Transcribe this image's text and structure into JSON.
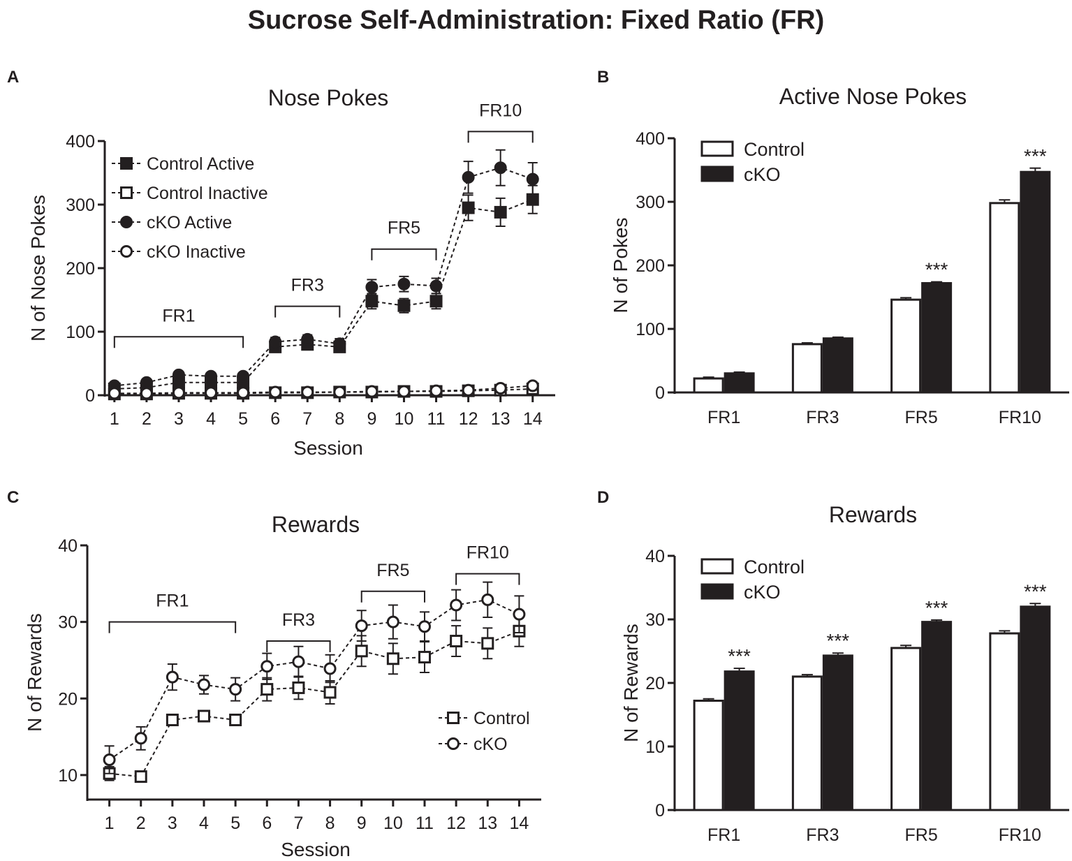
{
  "figure": {
    "title": "Sucrose Self-Administration: Fixed Ratio (FR)"
  },
  "chart_data": [
    {
      "panel": "A",
      "type": "line",
      "title": "Nose Pokes",
      "xlabel": "Session",
      "ylabel": "N of Nose Pokes",
      "x": [
        1,
        2,
        3,
        4,
        5,
        6,
        7,
        8,
        9,
        10,
        11,
        12,
        13,
        14
      ],
      "xlim": [
        0.7,
        14.7
      ],
      "ylim": [
        0,
        400
      ],
      "yticks": [
        0,
        100,
        200,
        300,
        400
      ],
      "legend_position": "top-left",
      "series": [
        {
          "name": "Control Active",
          "marker": "square",
          "fill": "filled",
          "values": [
            10,
            12,
            20,
            20,
            20,
            76,
            80,
            76,
            148,
            141,
            148,
            295,
            288,
            308
          ],
          "errors": [
            3,
            3,
            4,
            4,
            4,
            7,
            7,
            7,
            12,
            11,
            12,
            20,
            22,
            22
          ]
        },
        {
          "name": "Control Inactive",
          "marker": "square",
          "fill": "open",
          "values": [
            2,
            2,
            3,
            3,
            3,
            4,
            4,
            5,
            5,
            6,
            6,
            7,
            8,
            10
          ],
          "errors": [
            1,
            1,
            1,
            1,
            1,
            1,
            1,
            1,
            1,
            1,
            1,
            2,
            2,
            2
          ]
        },
        {
          "name": "cKO Active",
          "marker": "circle",
          "fill": "filled",
          "values": [
            15,
            20,
            32,
            30,
            30,
            84,
            88,
            81,
            170,
            175,
            172,
            343,
            358,
            340
          ],
          "errors": [
            3,
            4,
            5,
            5,
            5,
            7,
            7,
            8,
            12,
            12,
            12,
            25,
            28,
            26
          ]
        },
        {
          "name": "cKO Inactive",
          "marker": "circle",
          "fill": "open",
          "values": [
            3,
            3,
            4,
            4,
            4,
            5,
            5,
            5,
            6,
            6,
            7,
            8,
            11,
            15
          ],
          "errors": [
            1,
            1,
            1,
            1,
            1,
            1,
            1,
            1,
            1,
            1,
            1,
            2,
            2,
            2
          ]
        }
      ],
      "brackets": [
        {
          "label": "FR1",
          "from": 1,
          "to": 5,
          "level": 92
        },
        {
          "label": "FR3",
          "from": 6,
          "to": 8,
          "level": 140
        },
        {
          "label": "FR5",
          "from": 9,
          "to": 11,
          "level": 230
        },
        {
          "label": "FR10",
          "from": 12,
          "to": 14,
          "level": 415
        }
      ]
    },
    {
      "panel": "B",
      "type": "bar",
      "title": "Active Nose Pokes",
      "xlabel": "",
      "ylabel": "N of Pokes",
      "categories": [
        "FR1",
        "FR3",
        "FR5",
        "FR10"
      ],
      "ylim": [
        0,
        400
      ],
      "yticks": [
        0,
        100,
        200,
        300,
        400
      ],
      "legend_position": "top-left",
      "series": [
        {
          "name": "Control",
          "fill": "open",
          "values": [
            22,
            76,
            146,
            298
          ],
          "errors": [
            2,
            2,
            3,
            5
          ]
        },
        {
          "name": "cKO",
          "fill": "filled",
          "values": [
            30,
            85,
            172,
            347
          ],
          "errors": [
            2,
            2,
            2,
            6
          ]
        }
      ],
      "annotations": [
        {
          "category": "FR5",
          "series": "cKO",
          "text": "***"
        },
        {
          "category": "FR10",
          "series": "cKO",
          "text": "***"
        }
      ]
    },
    {
      "panel": "C",
      "type": "line",
      "title": "Rewards",
      "xlabel": "Session",
      "ylabel": "N of Rewards",
      "x": [
        1,
        2,
        3,
        4,
        5,
        6,
        7,
        8,
        9,
        10,
        11,
        12,
        13,
        14
      ],
      "xlim": [
        0.3,
        14.7
      ],
      "ylim": [
        6.8,
        40
      ],
      "yticks": [
        10,
        20,
        30,
        40
      ],
      "legend_position": "bottom-right",
      "series": [
        {
          "name": "Control",
          "marker": "square",
          "fill": "open",
          "values": [
            10.2,
            9.8,
            17.2,
            17.7,
            17.2,
            21.2,
            21.4,
            20.8,
            26.2,
            25.2,
            25.4,
            27.5,
            27.2,
            28.8
          ],
          "errors": [
            0.9,
            0.6,
            0.7,
            0.7,
            0.7,
            1.5,
            1.5,
            1.5,
            2.0,
            2.0,
            2.0,
            2.0,
            2.0,
            2.0
          ]
        },
        {
          "name": "cKO",
          "marker": "circle",
          "fill": "open",
          "values": [
            12.0,
            14.8,
            22.8,
            21.8,
            21.2,
            24.2,
            24.8,
            23.9,
            29.5,
            30.0,
            29.4,
            32.2,
            32.9,
            31.0
          ],
          "errors": [
            1.8,
            1.5,
            1.7,
            1.2,
            1.5,
            1.7,
            2.0,
            1.8,
            2.0,
            2.2,
            1.9,
            2.0,
            2.3,
            2.4
          ]
        }
      ],
      "brackets": [
        {
          "label": "FR1",
          "from": 1,
          "to": 5,
          "level": 30.0
        },
        {
          "label": "FR3",
          "from": 6,
          "to": 8,
          "level": 27.5
        },
        {
          "label": "FR5",
          "from": 9,
          "to": 11,
          "level": 34.0
        },
        {
          "label": "FR10",
          "from": 12,
          "to": 14,
          "level": 36.3
        }
      ]
    },
    {
      "panel": "D",
      "type": "bar",
      "title": "Rewards",
      "xlabel": "",
      "ylabel": "N of Rewards",
      "categories": [
        "FR1",
        "FR3",
        "FR5",
        "FR10"
      ],
      "ylim": [
        0,
        40
      ],
      "yticks": [
        0,
        10,
        20,
        30,
        40
      ],
      "legend_position": "top-left",
      "series": [
        {
          "name": "Control",
          "fill": "open",
          "values": [
            17.2,
            21.0,
            25.5,
            27.8
          ],
          "errors": [
            0.3,
            0.3,
            0.4,
            0.4
          ]
        },
        {
          "name": "cKO",
          "fill": "filled",
          "values": [
            21.8,
            24.3,
            29.6,
            32.0
          ],
          "errors": [
            0.5,
            0.4,
            0.3,
            0.5
          ]
        }
      ],
      "annotations": [
        {
          "category": "FR1",
          "series": "cKO",
          "text": "***"
        },
        {
          "category": "FR3",
          "series": "cKO",
          "text": "***"
        },
        {
          "category": "FR5",
          "series": "cKO",
          "text": "***"
        },
        {
          "category": "FR10",
          "series": "cKO",
          "text": "***"
        }
      ]
    }
  ]
}
